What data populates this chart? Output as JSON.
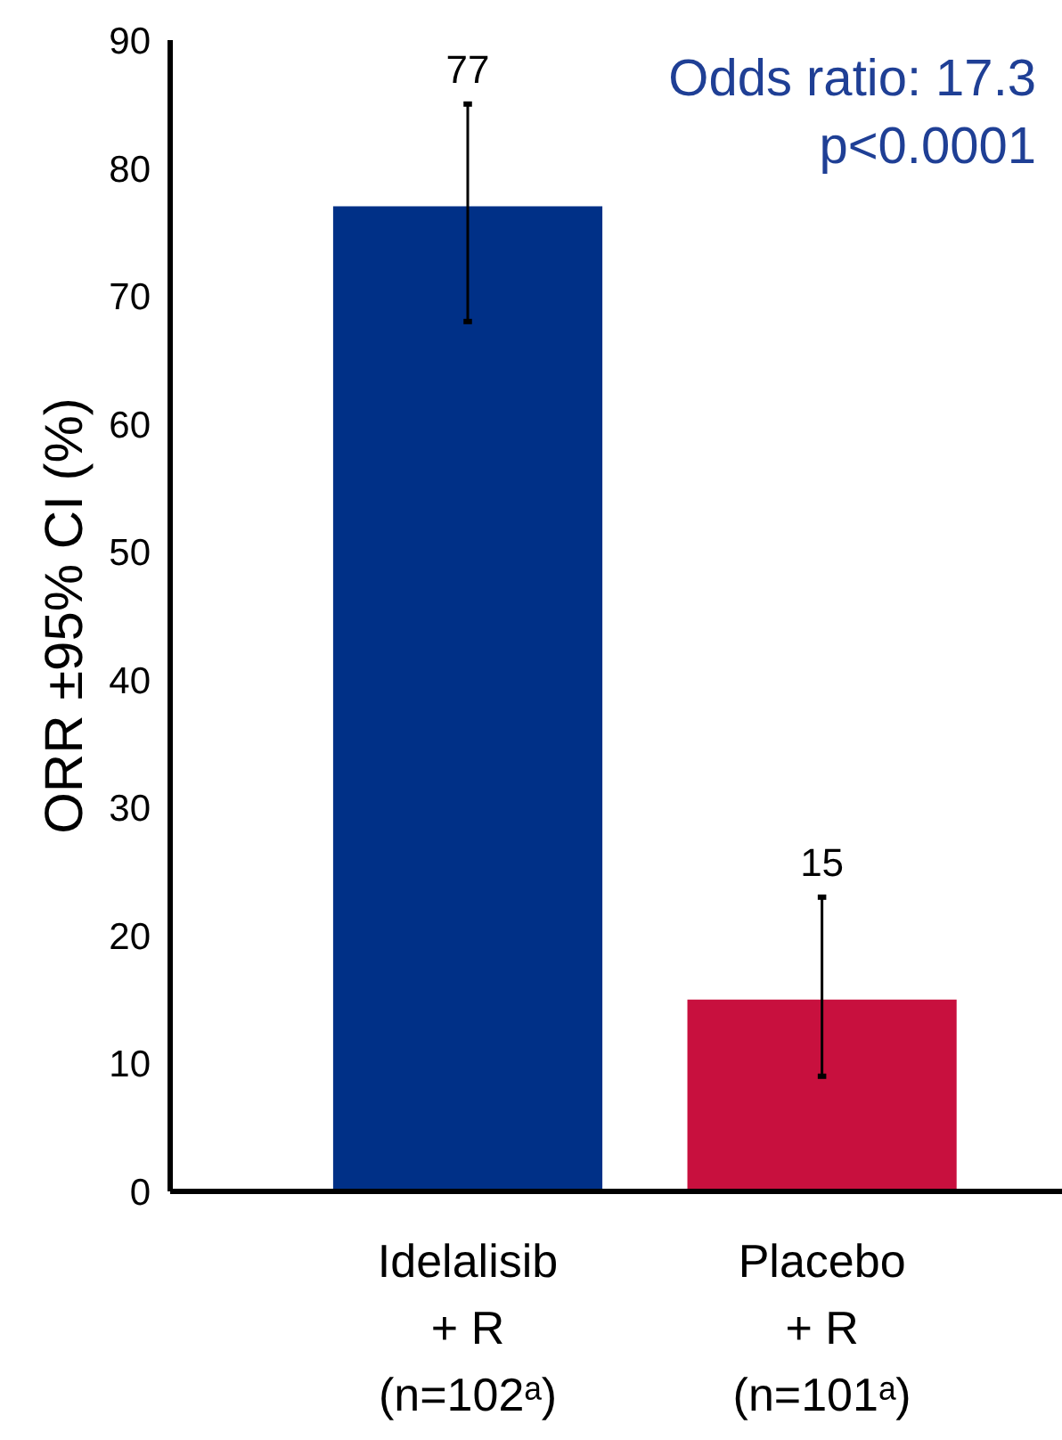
{
  "chart_data": {
    "type": "bar",
    "ylabel": "ORR ±95% CI (%)",
    "categories": [
      "Idelalisib\n+ R\n(n=102ᵃ)",
      "Placebo\n+ R\n(n=101ᵃ)"
    ],
    "values": [
      77,
      15
    ],
    "colors": [
      "#003087",
      "#c8103e"
    ],
    "errors": [
      [
        68,
        85
      ],
      [
        9,
        23
      ]
    ],
    "data_labels": true,
    "ylim": [
      0,
      90
    ],
    "yticks": [
      0,
      10,
      20,
      30,
      40,
      50,
      60,
      70,
      80,
      90
    ],
    "grid": false,
    "annotations": [
      "Odds ratio: 17.3",
      "p<0.0001"
    ]
  }
}
